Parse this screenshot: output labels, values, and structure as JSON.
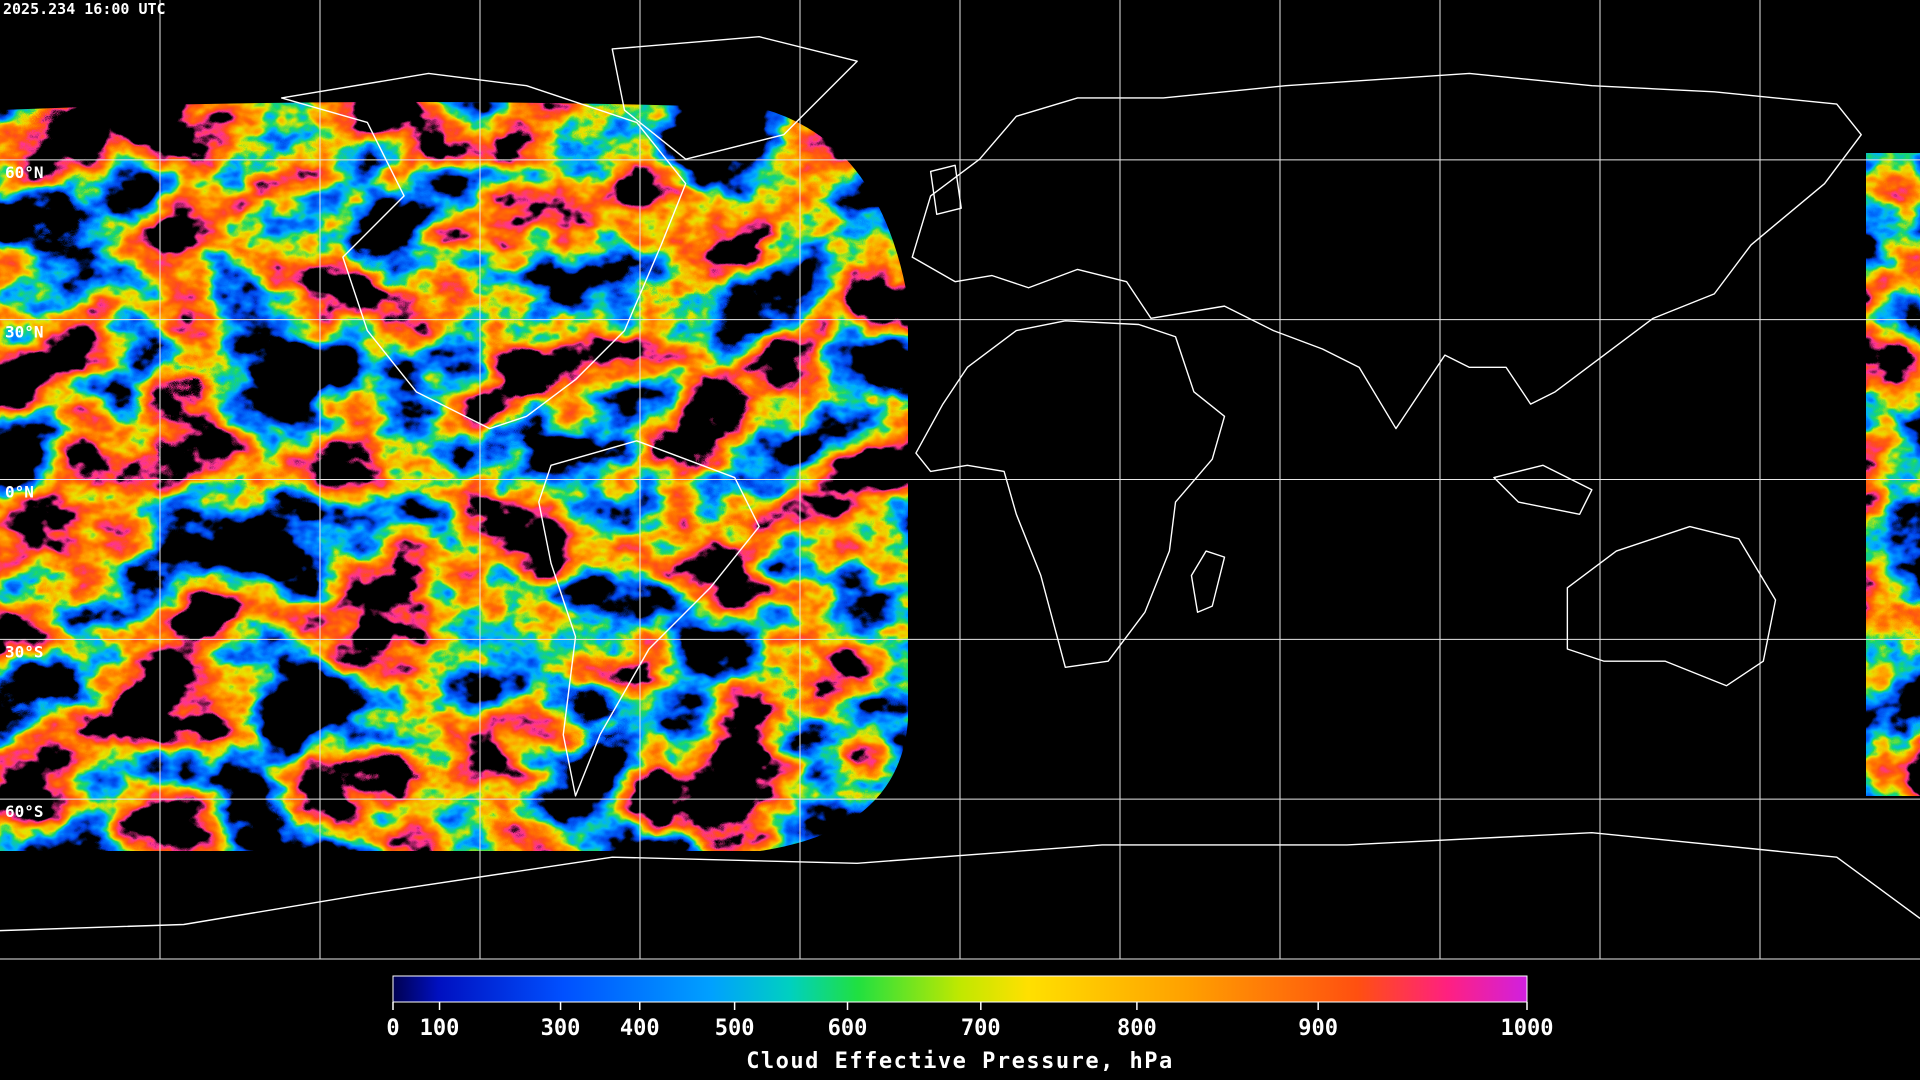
{
  "timestamp": "2025.234 16:00 UTC",
  "map": {
    "latitude_labels": [
      "60°N",
      "30°N",
      "0°N",
      "30°S",
      "60°S"
    ]
  },
  "colorbar": {
    "title": "Cloud Effective Pressure, hPa",
    "range": [
      0,
      1000
    ],
    "ticks": [
      0,
      100,
      300,
      400,
      500,
      600,
      700,
      800,
      900,
      1000
    ]
  }
}
